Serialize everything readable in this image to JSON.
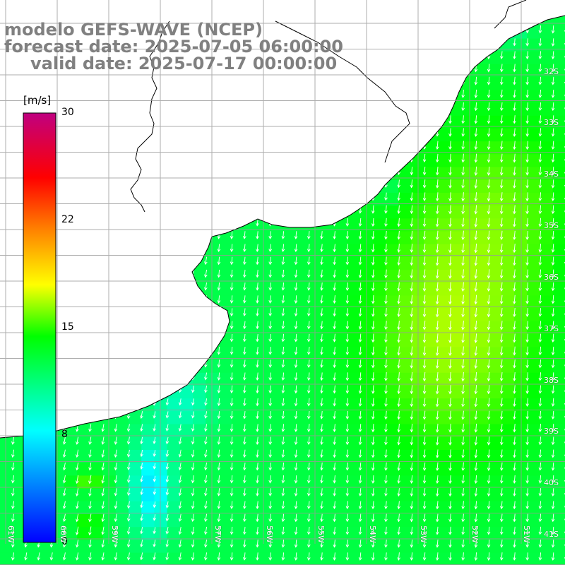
{
  "title": {
    "line1": "modelo GEFS-WAVE (NCEP)",
    "line2": "forecast date: 2025-07-05 06:00:00",
    "line3": "valid date: 2025-07-17 00:00:00"
  },
  "colorbar": {
    "unit": "[m/s]",
    "min": 0,
    "max": 30,
    "ticks": [
      {
        "value": 30,
        "label": "30"
      },
      {
        "value": 22,
        "label": "22"
      },
      {
        "value": 15,
        "label": "15"
      },
      {
        "value": 8,
        "label": "8"
      },
      {
        "value": 0,
        "label": "0"
      }
    ],
    "stops": [
      "#0000ff",
      "#00ffff",
      "#00ff00",
      "#ffff00",
      "#ff8000",
      "#ff0000",
      "#c00080"
    ]
  },
  "map": {
    "lat_labels": [
      "32S",
      "33S",
      "34S",
      "35S",
      "36S",
      "37S",
      "38S",
      "39S",
      "40S",
      "41S"
    ],
    "lon_labels": [
      "61W",
      "60W",
      "59W",
      "57W",
      "56W",
      "55W",
      "54W",
      "53W",
      "52W",
      "51W"
    ],
    "background_land": "#ffffff",
    "grid_color": "#999999",
    "arrow_color": "#ffffff"
  }
}
